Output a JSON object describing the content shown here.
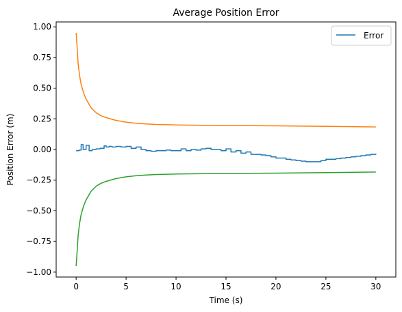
{
  "chart_data": {
    "type": "line",
    "title": "Average Position Error",
    "xlabel": "Time (s)",
    "ylabel": "Position Error (m)",
    "xlim": [
      -2,
      32
    ],
    "ylim": [
      -1.04,
      1.04
    ],
    "x_ticks": [
      0,
      5,
      10,
      15,
      20,
      25,
      30
    ],
    "x_tick_labels": [
      "0",
      "5",
      "10",
      "15",
      "20",
      "25",
      "30"
    ],
    "y_ticks": [
      1.0,
      0.75,
      0.5,
      0.25,
      0.0,
      -0.25,
      -0.5,
      -0.75,
      -1.0
    ],
    "y_tick_labels": [
      "1.00",
      "0.75",
      "0.50",
      "0.25",
      "0.00",
      "−0.25",
      "−0.50",
      "−0.75",
      "−1.00"
    ],
    "grid": false,
    "legend": {
      "placement": "top-right",
      "entries": [
        "Error"
      ]
    },
    "series": [
      {
        "name": "Error",
        "color": "#1f77b4",
        "step": true,
        "x": [
          0,
          0.3,
          0.5,
          0.7,
          1.0,
          1.3,
          1.6,
          2.0,
          2.4,
          2.8,
          3.0,
          3.3,
          3.6,
          4.0,
          4.5,
          5.0,
          5.5,
          6.0,
          6.5,
          7.0,
          7.5,
          8.0,
          8.5,
          9.0,
          9.5,
          10.0,
          10.5,
          11.0,
          11.5,
          12.0,
          12.5,
          13.0,
          13.5,
          14.0,
          14.5,
          15.0,
          15.5,
          16.0,
          16.5,
          17.0,
          17.5,
          18.0,
          18.5,
          19.0,
          19.5,
          20.0,
          20.5,
          21.0,
          21.5,
          22.0,
          22.5,
          23.0,
          23.5,
          24.0,
          24.5,
          25.0,
          25.5,
          26.0,
          26.5,
          27.0,
          27.5,
          28.0,
          28.5,
          29.0,
          29.5,
          30.0
        ],
        "y": [
          -0.01,
          -0.005,
          0.04,
          0.0,
          0.035,
          -0.01,
          0.0,
          0.005,
          0.01,
          0.03,
          0.02,
          0.025,
          0.02,
          0.025,
          0.02,
          0.025,
          0.01,
          0.02,
          0.0,
          -0.01,
          -0.015,
          -0.01,
          -0.01,
          -0.005,
          -0.01,
          -0.01,
          0.005,
          -0.01,
          0.0,
          -0.005,
          0.005,
          0.01,
          0.0,
          0.0,
          -0.01,
          0.005,
          -0.02,
          -0.01,
          -0.03,
          -0.02,
          -0.04,
          -0.04,
          -0.045,
          -0.05,
          -0.06,
          -0.07,
          -0.07,
          -0.08,
          -0.085,
          -0.09,
          -0.095,
          -0.1,
          -0.1,
          -0.1,
          -0.09,
          -0.08,
          -0.08,
          -0.075,
          -0.07,
          -0.065,
          -0.06,
          -0.055,
          -0.05,
          -0.045,
          -0.04,
          -0.035
        ]
      },
      {
        "name": "",
        "color": "#ff7f0e",
        "x": [
          0,
          0.1,
          0.2,
          0.35,
          0.5,
          0.75,
          1.0,
          1.5,
          2.0,
          2.5,
          3.0,
          4.0,
          5.0,
          6.0,
          7.0,
          8.0,
          10.0,
          12.0,
          15.0,
          20.0,
          25.0,
          30.0
        ],
        "y": [
          0.95,
          0.83,
          0.7,
          0.6,
          0.53,
          0.46,
          0.41,
          0.34,
          0.3,
          0.275,
          0.26,
          0.237,
          0.223,
          0.214,
          0.208,
          0.204,
          0.2,
          0.198,
          0.196,
          0.193,
          0.189,
          0.184
        ]
      },
      {
        "name": "",
        "color": "#2ca02c",
        "x": [
          0,
          0.1,
          0.2,
          0.35,
          0.5,
          0.75,
          1.0,
          1.5,
          2.0,
          2.5,
          3.0,
          4.0,
          5.0,
          6.0,
          7.0,
          8.0,
          10.0,
          12.0,
          15.0,
          20.0,
          25.0,
          30.0
        ],
        "y": [
          -0.95,
          -0.83,
          -0.7,
          -0.6,
          -0.53,
          -0.46,
          -0.41,
          -0.34,
          -0.3,
          -0.275,
          -0.26,
          -0.237,
          -0.223,
          -0.214,
          -0.208,
          -0.204,
          -0.2,
          -0.198,
          -0.196,
          -0.193,
          -0.189,
          -0.184
        ]
      }
    ]
  }
}
